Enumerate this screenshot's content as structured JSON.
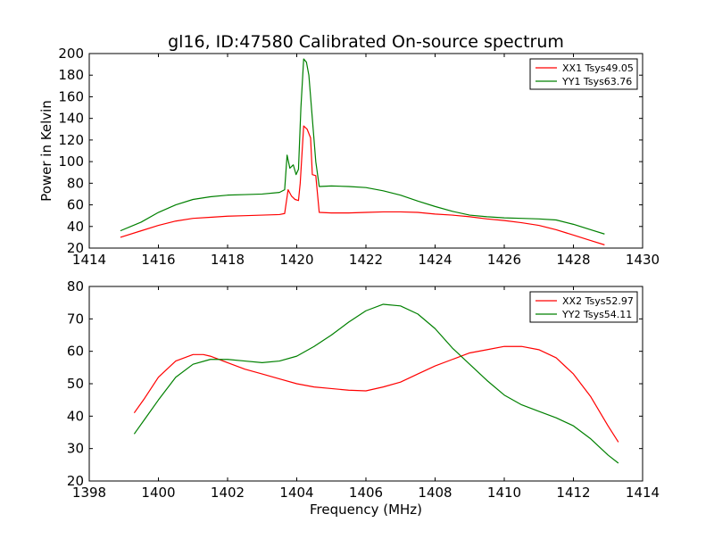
{
  "figure": {
    "title": "gl16, ID:47580 Calibrated On-source spectrum"
  },
  "colors": {
    "red": "#ff0000",
    "green": "#008000"
  },
  "chart_data": [
    {
      "type": "line",
      "title": "gl16, ID:47580 Calibrated On-source spectrum",
      "xlabel": "",
      "ylabel": "Power in Kelvin",
      "xlim": [
        1414,
        1430
      ],
      "ylim": [
        20,
        200
      ],
      "xticks": [
        1414,
        1416,
        1418,
        1420,
        1422,
        1424,
        1426,
        1428,
        1430
      ],
      "xtick_labels": [
        "1414",
        "1416",
        "1418",
        "1420",
        "1422",
        "1424",
        "1426",
        "1428",
        "1430"
      ],
      "yticks": [
        20,
        40,
        60,
        80,
        100,
        120,
        140,
        160,
        180,
        200
      ],
      "ytick_labels": [
        "20",
        "40",
        "60",
        "80",
        "100",
        "120",
        "140",
        "160",
        "180",
        "200"
      ],
      "grid": false,
      "legend_position": "top-right",
      "series": [
        {
          "name": "XX1 Tsys49.05",
          "color": "#ff0000",
          "points": [
            [
              1414.9,
              30
            ],
            [
              1415.5,
              36
            ],
            [
              1416.0,
              41
            ],
            [
              1416.5,
              45
            ],
            [
              1417.0,
              47.5
            ],
            [
              1417.5,
              48.5
            ],
            [
              1418.0,
              49.5
            ],
            [
              1418.5,
              50
            ],
            [
              1419.0,
              50.5
            ],
            [
              1419.5,
              51
            ],
            [
              1419.65,
              52
            ],
            [
              1419.75,
              74
            ],
            [
              1419.85,
              68
            ],
            [
              1419.95,
              65
            ],
            [
              1420.05,
              64
            ],
            [
              1420.1,
              80
            ],
            [
              1420.2,
              133
            ],
            [
              1420.3,
              130
            ],
            [
              1420.4,
              122
            ],
            [
              1420.45,
              88
            ],
            [
              1420.55,
              87
            ],
            [
              1420.65,
              53
            ],
            [
              1421.0,
              52.5
            ],
            [
              1421.5,
              52.5
            ],
            [
              1422.0,
              53
            ],
            [
              1422.5,
              53.5
            ],
            [
              1423.0,
              53.5
            ],
            [
              1423.5,
              53
            ],
            [
              1424.0,
              51.5
            ],
            [
              1424.5,
              50.5
            ],
            [
              1425.0,
              49
            ],
            [
              1425.5,
              47
            ],
            [
              1426.0,
              45.5
            ],
            [
              1426.5,
              43.5
            ],
            [
              1427.0,
              41
            ],
            [
              1427.5,
              37
            ],
            [
              1428.0,
              32
            ],
            [
              1428.5,
              27
            ],
            [
              1428.9,
              23
            ]
          ]
        },
        {
          "name": "YY1 Tsys63.76",
          "color": "#008000",
          "points": [
            [
              1414.9,
              36
            ],
            [
              1415.5,
              44
            ],
            [
              1416.0,
              53
            ],
            [
              1416.5,
              60
            ],
            [
              1417.0,
              65
            ],
            [
              1417.5,
              67.5
            ],
            [
              1418.0,
              69
            ],
            [
              1418.5,
              69.5
            ],
            [
              1419.0,
              70
            ],
            [
              1419.5,
              71.5
            ],
            [
              1419.65,
              74
            ],
            [
              1419.72,
              106
            ],
            [
              1419.8,
              94
            ],
            [
              1419.9,
              97
            ],
            [
              1419.98,
              88
            ],
            [
              1420.05,
              93
            ],
            [
              1420.12,
              150
            ],
            [
              1420.2,
              195
            ],
            [
              1420.28,
              192
            ],
            [
              1420.35,
              180
            ],
            [
              1420.45,
              140
            ],
            [
              1420.55,
              100
            ],
            [
              1420.65,
              77
            ],
            [
              1421.0,
              77.5
            ],
            [
              1421.5,
              77
            ],
            [
              1422.0,
              76
            ],
            [
              1422.5,
              73
            ],
            [
              1423.0,
              69
            ],
            [
              1423.5,
              63.5
            ],
            [
              1424.0,
              58.5
            ],
            [
              1424.5,
              54
            ],
            [
              1425.0,
              50.5
            ],
            [
              1425.5,
              49
            ],
            [
              1426.0,
              48
            ],
            [
              1426.5,
              47.5
            ],
            [
              1427.0,
              47
            ],
            [
              1427.5,
              46
            ],
            [
              1428.0,
              42
            ],
            [
              1428.5,
              37
            ],
            [
              1428.9,
              33
            ]
          ]
        }
      ]
    },
    {
      "type": "line",
      "title": "",
      "xlabel": "Frequency (MHz)",
      "ylabel": "",
      "xlim": [
        1398,
        1414
      ],
      "ylim": [
        20,
        80
      ],
      "xticks": [
        1398,
        1400,
        1402,
        1404,
        1406,
        1408,
        1410,
        1412,
        1414
      ],
      "xtick_labels": [
        "1398",
        "1400",
        "1402",
        "1404",
        "1406",
        "1408",
        "1410",
        "1412",
        "1414"
      ],
      "yticks": [
        20,
        30,
        40,
        50,
        60,
        70,
        80
      ],
      "ytick_labels": [
        "20",
        "30",
        "40",
        "50",
        "60",
        "70",
        "80"
      ],
      "grid": false,
      "legend_position": "top-right",
      "series": [
        {
          "name": "XX2 Tsys52.97",
          "color": "#ff0000",
          "points": [
            [
              1399.3,
              41
            ],
            [
              1399.6,
              45.5
            ],
            [
              1400.0,
              52
            ],
            [
              1400.5,
              57
            ],
            [
              1401.0,
              59
            ],
            [
              1401.3,
              59
            ],
            [
              1401.5,
              58.5
            ],
            [
              1402.0,
              56.5
            ],
            [
              1402.5,
              54.5
            ],
            [
              1403.0,
              53
            ],
            [
              1403.5,
              51.5
            ],
            [
              1404.0,
              50
            ],
            [
              1404.5,
              49
            ],
            [
              1405.0,
              48.5
            ],
            [
              1405.5,
              48
            ],
            [
              1406.0,
              47.8
            ],
            [
              1406.5,
              49
            ],
            [
              1407.0,
              50.5
            ],
            [
              1407.5,
              53
            ],
            [
              1408.0,
              55.5
            ],
            [
              1408.5,
              57.5
            ],
            [
              1409.0,
              59.5
            ],
            [
              1409.5,
              60.5
            ],
            [
              1410.0,
              61.5
            ],
            [
              1410.5,
              61.5
            ],
            [
              1411.0,
              60.5
            ],
            [
              1411.5,
              58
            ],
            [
              1412.0,
              53
            ],
            [
              1412.5,
              46
            ],
            [
              1413.0,
              37
            ],
            [
              1413.3,
              32
            ]
          ]
        },
        {
          "name": "YY2 Tsys54.11",
          "color": "#008000",
          "points": [
            [
              1399.3,
              34.5
            ],
            [
              1399.6,
              39
            ],
            [
              1400.0,
              45
            ],
            [
              1400.5,
              52
            ],
            [
              1401.0,
              56
            ],
            [
              1401.5,
              57.5
            ],
            [
              1402.0,
              57.5
            ],
            [
              1402.5,
              57
            ],
            [
              1403.0,
              56.5
            ],
            [
              1403.5,
              57
            ],
            [
              1404.0,
              58.5
            ],
            [
              1404.5,
              61.5
            ],
            [
              1405.0,
              65
            ],
            [
              1405.5,
              69
            ],
            [
              1406.0,
              72.5
            ],
            [
              1406.5,
              74.5
            ],
            [
              1407.0,
              74
            ],
            [
              1407.5,
              71.5
            ],
            [
              1408.0,
              67
            ],
            [
              1408.5,
              61
            ],
            [
              1409.0,
              56
            ],
            [
              1409.5,
              51
            ],
            [
              1410.0,
              46.5
            ],
            [
              1410.5,
              43.5
            ],
            [
              1411.0,
              41.5
            ],
            [
              1411.5,
              39.5
            ],
            [
              1412.0,
              37
            ],
            [
              1412.5,
              33
            ],
            [
              1413.0,
              28
            ],
            [
              1413.3,
              25.5
            ]
          ]
        }
      ]
    }
  ]
}
